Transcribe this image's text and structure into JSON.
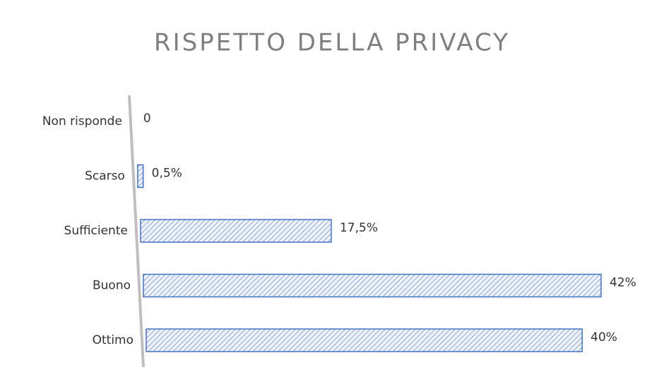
{
  "chart_data": {
    "type": "bar",
    "orientation": "horizontal",
    "title": "RISPETTO DELLA PRIVACY",
    "categories": [
      "Non risponde",
      "Scarso",
      "Sufficiente",
      "Buono",
      "Ottimo"
    ],
    "values": [
      0,
      0.5,
      17.5,
      42,
      40
    ],
    "value_labels": [
      "0",
      "0,5%",
      "17,5%",
      "42%",
      "40%"
    ],
    "color": "#4472c4"
  }
}
